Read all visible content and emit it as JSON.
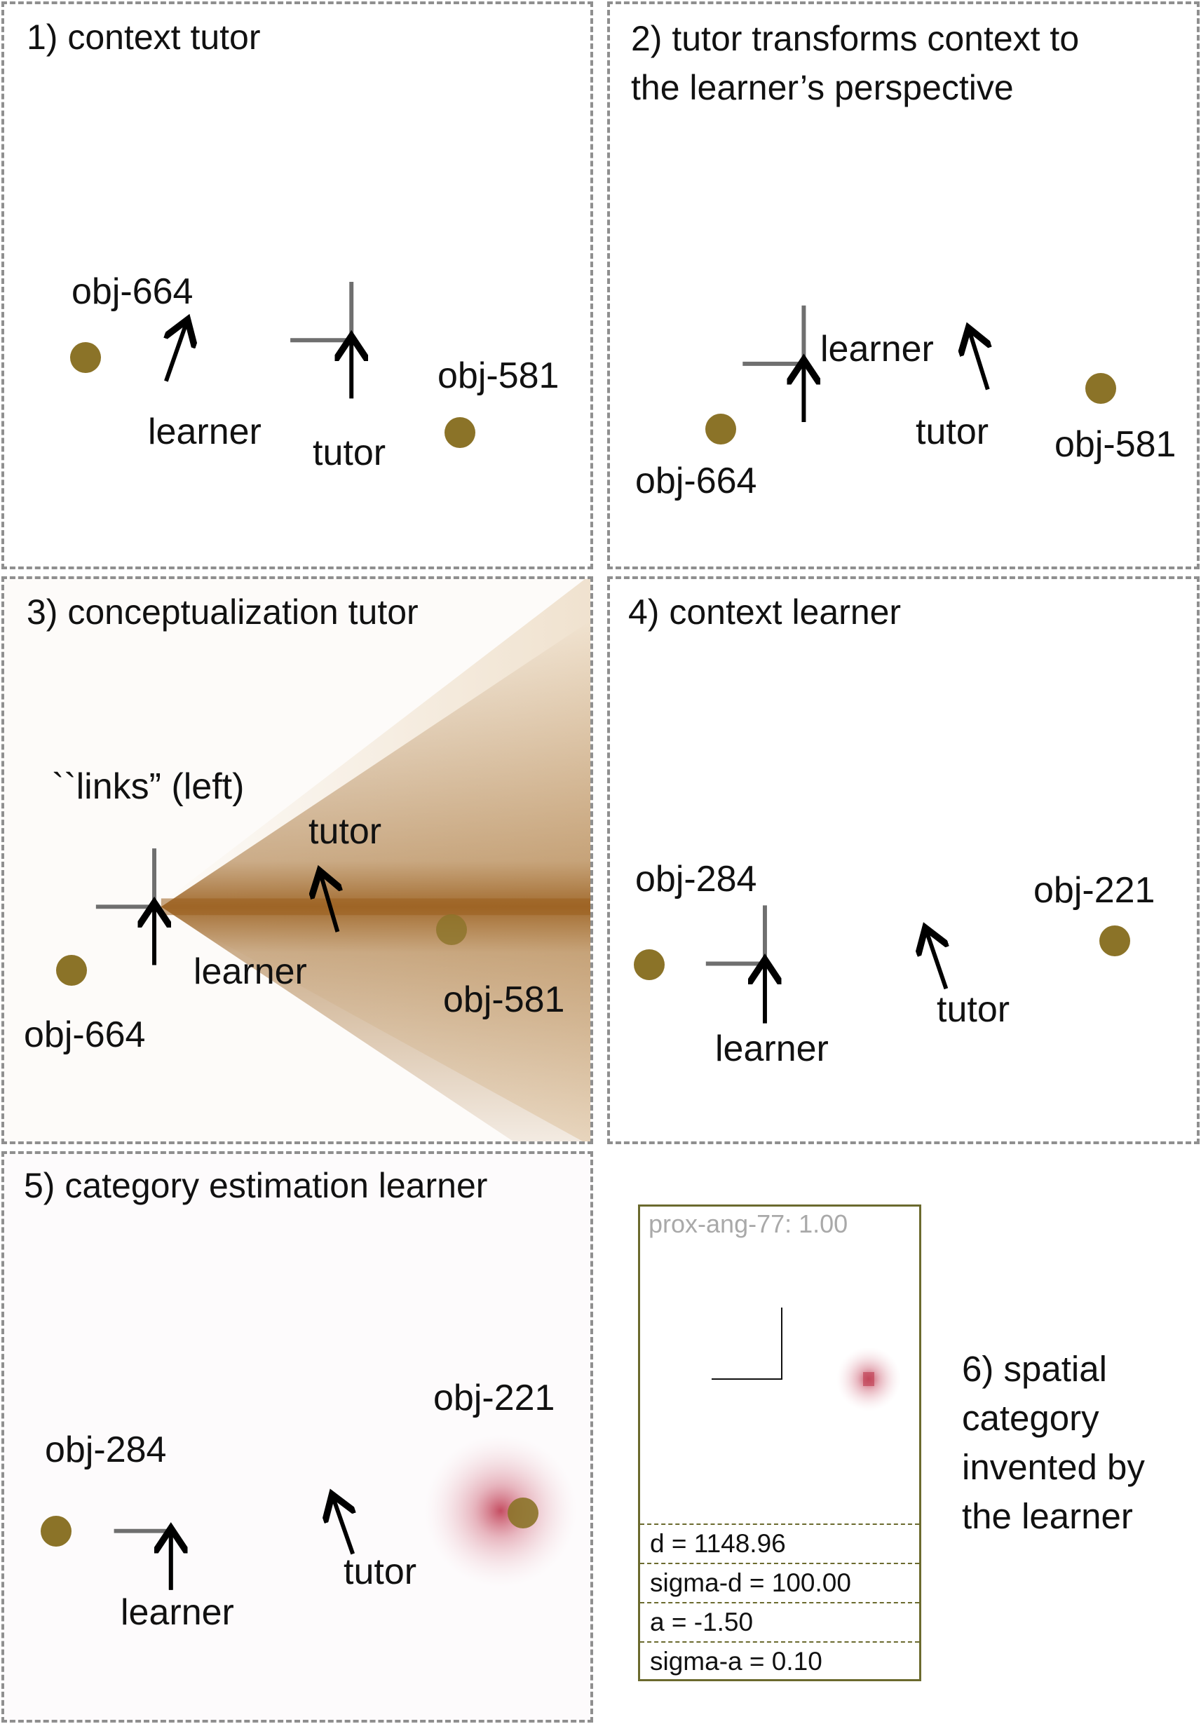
{
  "panels": {
    "p1": {
      "title": "1) context tutor",
      "obj_a": "obj-664",
      "obj_b": "obj-581",
      "learner": "learner",
      "tutor": "tutor"
    },
    "p2": {
      "title_line1": "2) tutor transforms context to",
      "title_line2": "the learner’s perspective",
      "obj_a": "obj-664",
      "obj_b": "obj-581",
      "learner": "learner",
      "tutor": "tutor"
    },
    "p3": {
      "title": "3) conceptualization tutor",
      "word": "``links” (left)",
      "obj_a": "obj-664",
      "obj_b": "obj-581",
      "learner": "learner",
      "tutor": "tutor"
    },
    "p4": {
      "title": "4) context learner",
      "obj_a": "obj-284",
      "obj_b": "obj-221",
      "learner": "learner",
      "tutor": "tutor"
    },
    "p5": {
      "title": "5) category estimation learner",
      "obj_a": "obj-284",
      "obj_b": "obj-221",
      "learner": "learner",
      "tutor": "tutor"
    },
    "p6": {
      "title_lines": [
        "6) spatial",
        "category",
        "invented by",
        "the learner"
      ],
      "category_header": "prox-ang-77: 1.00",
      "params": [
        "d = 1148.96",
        "sigma-d = 100.00",
        "a = -1.50",
        "sigma-a = 0.10"
      ]
    }
  },
  "colors": {
    "object_dot": "#8b7328",
    "gradient_brown": "#a0692a",
    "category_red": "#c24459",
    "frame_olive": "#6b6a2e"
  }
}
